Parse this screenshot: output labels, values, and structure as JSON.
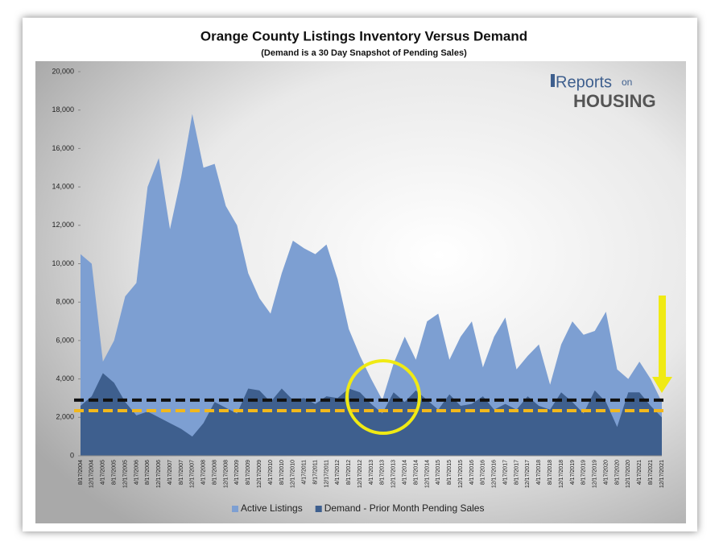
{
  "chart_data": {
    "type": "area",
    "title": "Orange County Listings Inventory Versus Demand",
    "subtitle": "(Demand is a 30 Day Snapshot of Pending Sales)",
    "logo": {
      "brand": "Reports",
      "small": "on",
      "name": "HOUSING"
    },
    "categories": [
      "8/17/2004",
      "12/17/2004",
      "4/17/2005",
      "8/17/2005",
      "12/17/2005",
      "4/17/2006",
      "8/17/2006",
      "12/17/2006",
      "4/17/2007",
      "8/17/2007",
      "12/17/2007",
      "4/17/2008",
      "8/17/2008",
      "12/17/2008",
      "4/17/2009",
      "8/17/2009",
      "12/17/2009",
      "4/17/2010",
      "8/17/2010",
      "12/17/2010",
      "4/17/2011",
      "8/17/2011",
      "12/17/2011",
      "4/17/2012",
      "8/17/2012",
      "12/17/2012",
      "4/17/2013",
      "8/17/2013",
      "12/17/2013",
      "4/17/2014",
      "8/17/2014",
      "12/17/2014",
      "4/17/2015",
      "8/17/2015",
      "12/17/2015",
      "4/17/2016",
      "8/17/2016",
      "12/17/2016",
      "4/17/2017",
      "8/17/2017",
      "12/17/2017",
      "4/17/2018",
      "8/17/2018",
      "12/17/2018",
      "4/17/2019",
      "8/17/2019",
      "12/17/2019",
      "4/17/2020",
      "8/17/2020",
      "12/17/2020",
      "4/17/2021",
      "8/17/2021",
      "12/17/2021"
    ],
    "series": [
      {
        "name": "Active Listings",
        "color": "#7d9fd2",
        "values": [
          10500,
          10000,
          4900,
          6000,
          8300,
          9000,
          14000,
          15500,
          11800,
          14500,
          17800,
          15000,
          15200,
          13000,
          12000,
          9500,
          8200,
          7400,
          9500,
          11200,
          10800,
          10500,
          11000,
          9200,
          6600,
          5200,
          4000,
          2900,
          4800,
          6200,
          5000,
          7000,
          7400,
          5000,
          6200,
          7000,
          4600,
          6200,
          7200,
          4500,
          5200,
          5800,
          3700,
          5800,
          7000,
          6300,
          6500,
          7500,
          4500,
          4000,
          4900,
          4000,
          2800
        ]
      },
      {
        "name": "Demand - Prior Month Pending Sales",
        "color": "#3e5f8e",
        "values": [
          2600,
          3100,
          4300,
          3800,
          2800,
          2100,
          2300,
          2000,
          1700,
          1400,
          1000,
          1700,
          2800,
          2500,
          2200,
          3500,
          3400,
          2800,
          3500,
          2900,
          3000,
          2700,
          3100,
          3000,
          3500,
          3300,
          2700,
          2200,
          3300,
          2800,
          3400,
          2900,
          2400,
          3200,
          2600,
          2700,
          3100,
          2400,
          2700,
          2400,
          3100,
          2600,
          2400,
          3300,
          2800,
          2200,
          3400,
          2800,
          1500,
          3300,
          3300,
          2600,
          2000
        ]
      }
    ],
    "reference_lines": [
      {
        "value": 2900,
        "color": "#111111"
      },
      {
        "value": 2350,
        "color": "#f2b81c"
      }
    ],
    "ylim": [
      0,
      20000
    ],
    "yticks": [
      0,
      {
        "value": 2000,
        "label": "2,000"
      },
      {
        "value": 4000,
        "label": "4,000"
      },
      {
        "value": 6000,
        "label": "6,000"
      },
      {
        "value": 8000,
        "label": "8,000"
      },
      {
        "value": 10000,
        "label": "10,000"
      },
      {
        "value": 12000,
        "label": "12,000"
      },
      {
        "value": 14000,
        "label": "14,000"
      },
      {
        "value": 16000,
        "label": "16,000"
      },
      {
        "value": 18000,
        "label": "18,000"
      },
      {
        "value": 20000,
        "label": "20,000"
      }
    ],
    "legend": "bottom"
  }
}
